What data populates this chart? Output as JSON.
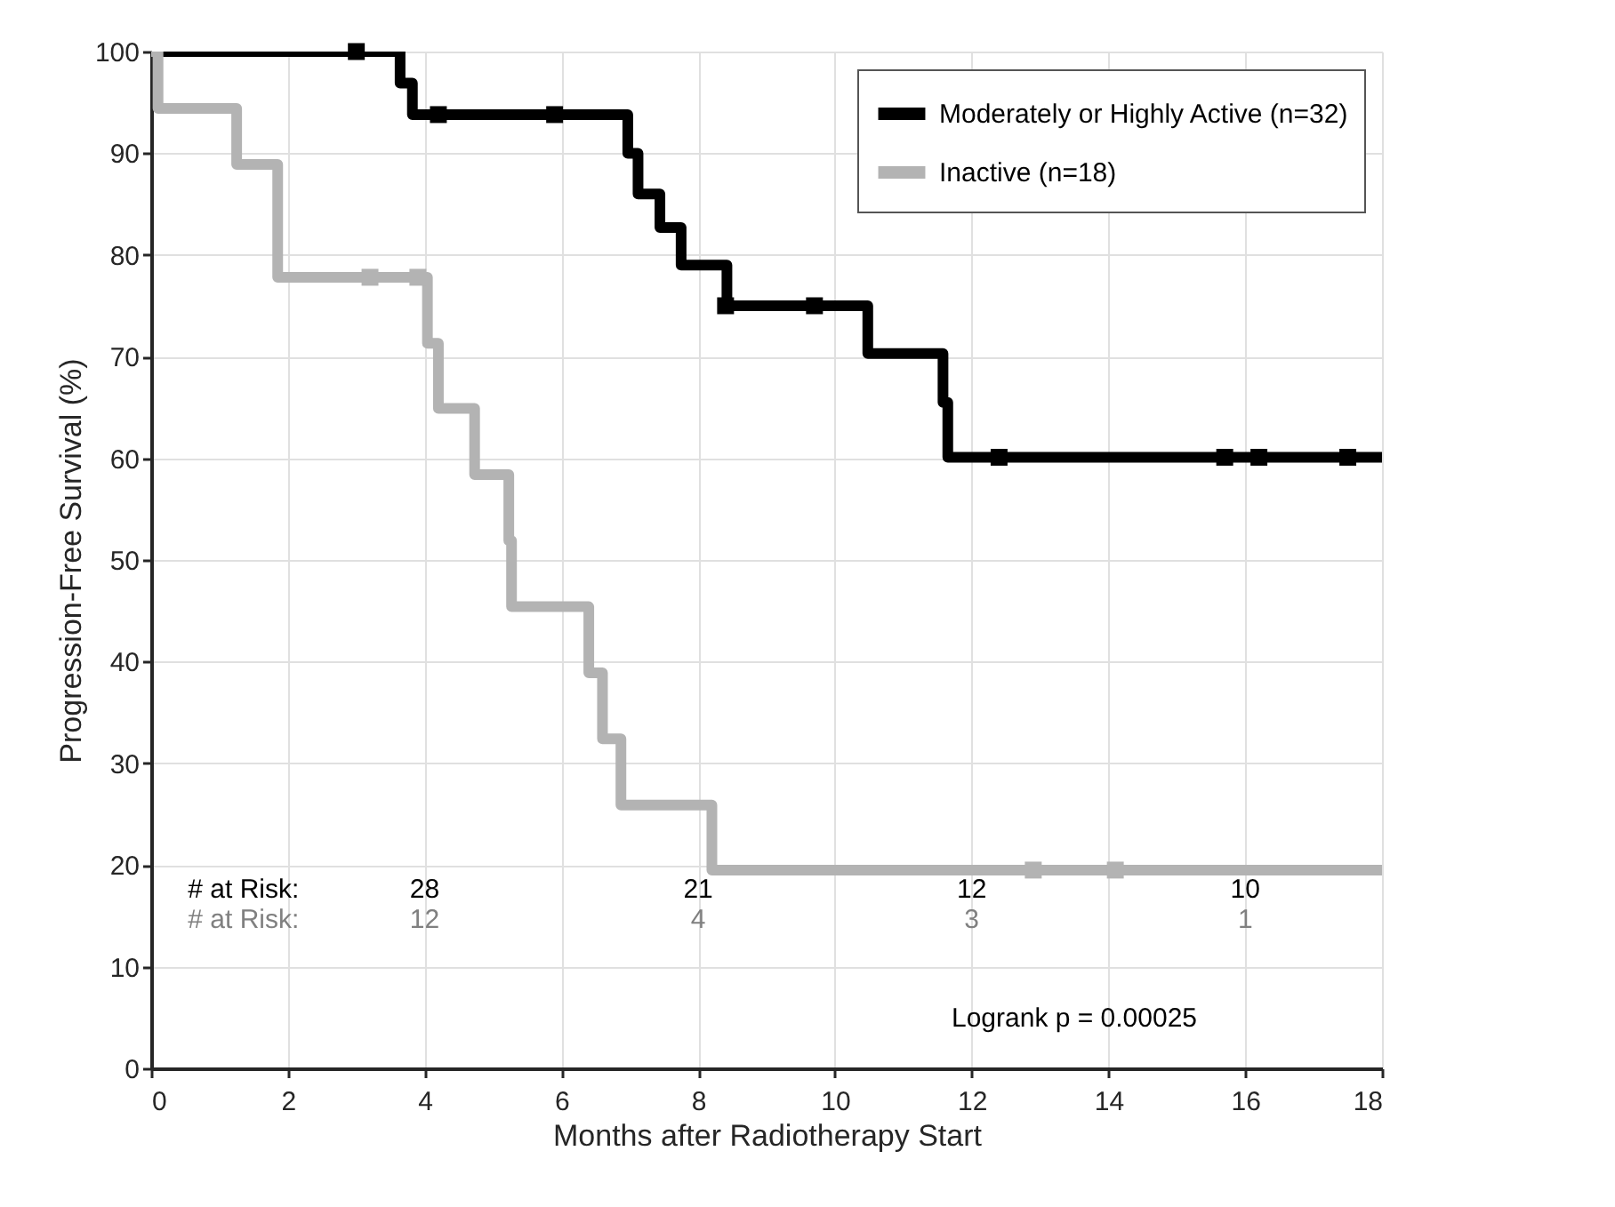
{
  "chart_data": {
    "type": "step",
    "xlabel": "Months after Radiotherapy Start",
    "ylabel": "Progression-Free Survival (%)",
    "xlim": [
      0,
      18
    ],
    "xticks": [
      0,
      2,
      4,
      6,
      8,
      10,
      12,
      14,
      16,
      18
    ],
    "ylim": [
      0,
      100
    ],
    "yticks": [
      0,
      10,
      20,
      30,
      40,
      50,
      60,
      70,
      80,
      90,
      100
    ],
    "grid": true,
    "legend": "top right",
    "line_style": "solid",
    "series": [
      {
        "name": "Moderately or Highly Active (n=32)",
        "color": "#000000",
        "x": [
          0,
          3.64,
          3.82,
          6.97,
          7.12,
          7.44,
          7.75,
          8.42,
          10.48,
          11.58,
          11.65,
          18
        ],
        "values": [
          100,
          96.9,
          93.8,
          90,
          86,
          82.7,
          79,
          75,
          70.3,
          65.5,
          60.1,
          60.1
        ]
      },
      {
        "name": "Inactive (n=18)",
        "color": "#b3b3b3",
        "x": [
          0,
          0.1,
          1.25,
          1.85,
          4.04,
          4.2,
          4.73,
          5.23,
          5.27,
          6.4,
          6.6,
          6.87,
          8.2,
          18
        ],
        "values": [
          100,
          94.4,
          88.9,
          77.8,
          71.3,
          64.9,
          58.4,
          51.9,
          45.4,
          38.9,
          32.4,
          25.9,
          19.5,
          19.5
        ]
      },
      {
        "type": "scatter",
        "marker": "square",
        "color": "#000000",
        "x": [
          3.0,
          4.2,
          5.9,
          8.4,
          9.7,
          12.4,
          15.7,
          16.2,
          17.5
        ],
        "values": [
          100,
          93.8,
          93.8,
          75,
          75,
          60.1,
          60.1,
          60.1,
          60.1
        ]
      },
      {
        "type": "scatter",
        "marker": "square",
        "color": "#b3b3b3",
        "x": [
          3.2,
          3.9,
          12.9,
          14.1
        ],
        "values": [
          77.8,
          77.8,
          19.5,
          19.5
        ]
      }
    ],
    "annotations": [
      "# at Risk:",
      "28",
      "21",
      "12",
      "10",
      "# at Risk:",
      "12",
      "4",
      "3",
      "1",
      "Logrank p = 0.00025"
    ]
  }
}
